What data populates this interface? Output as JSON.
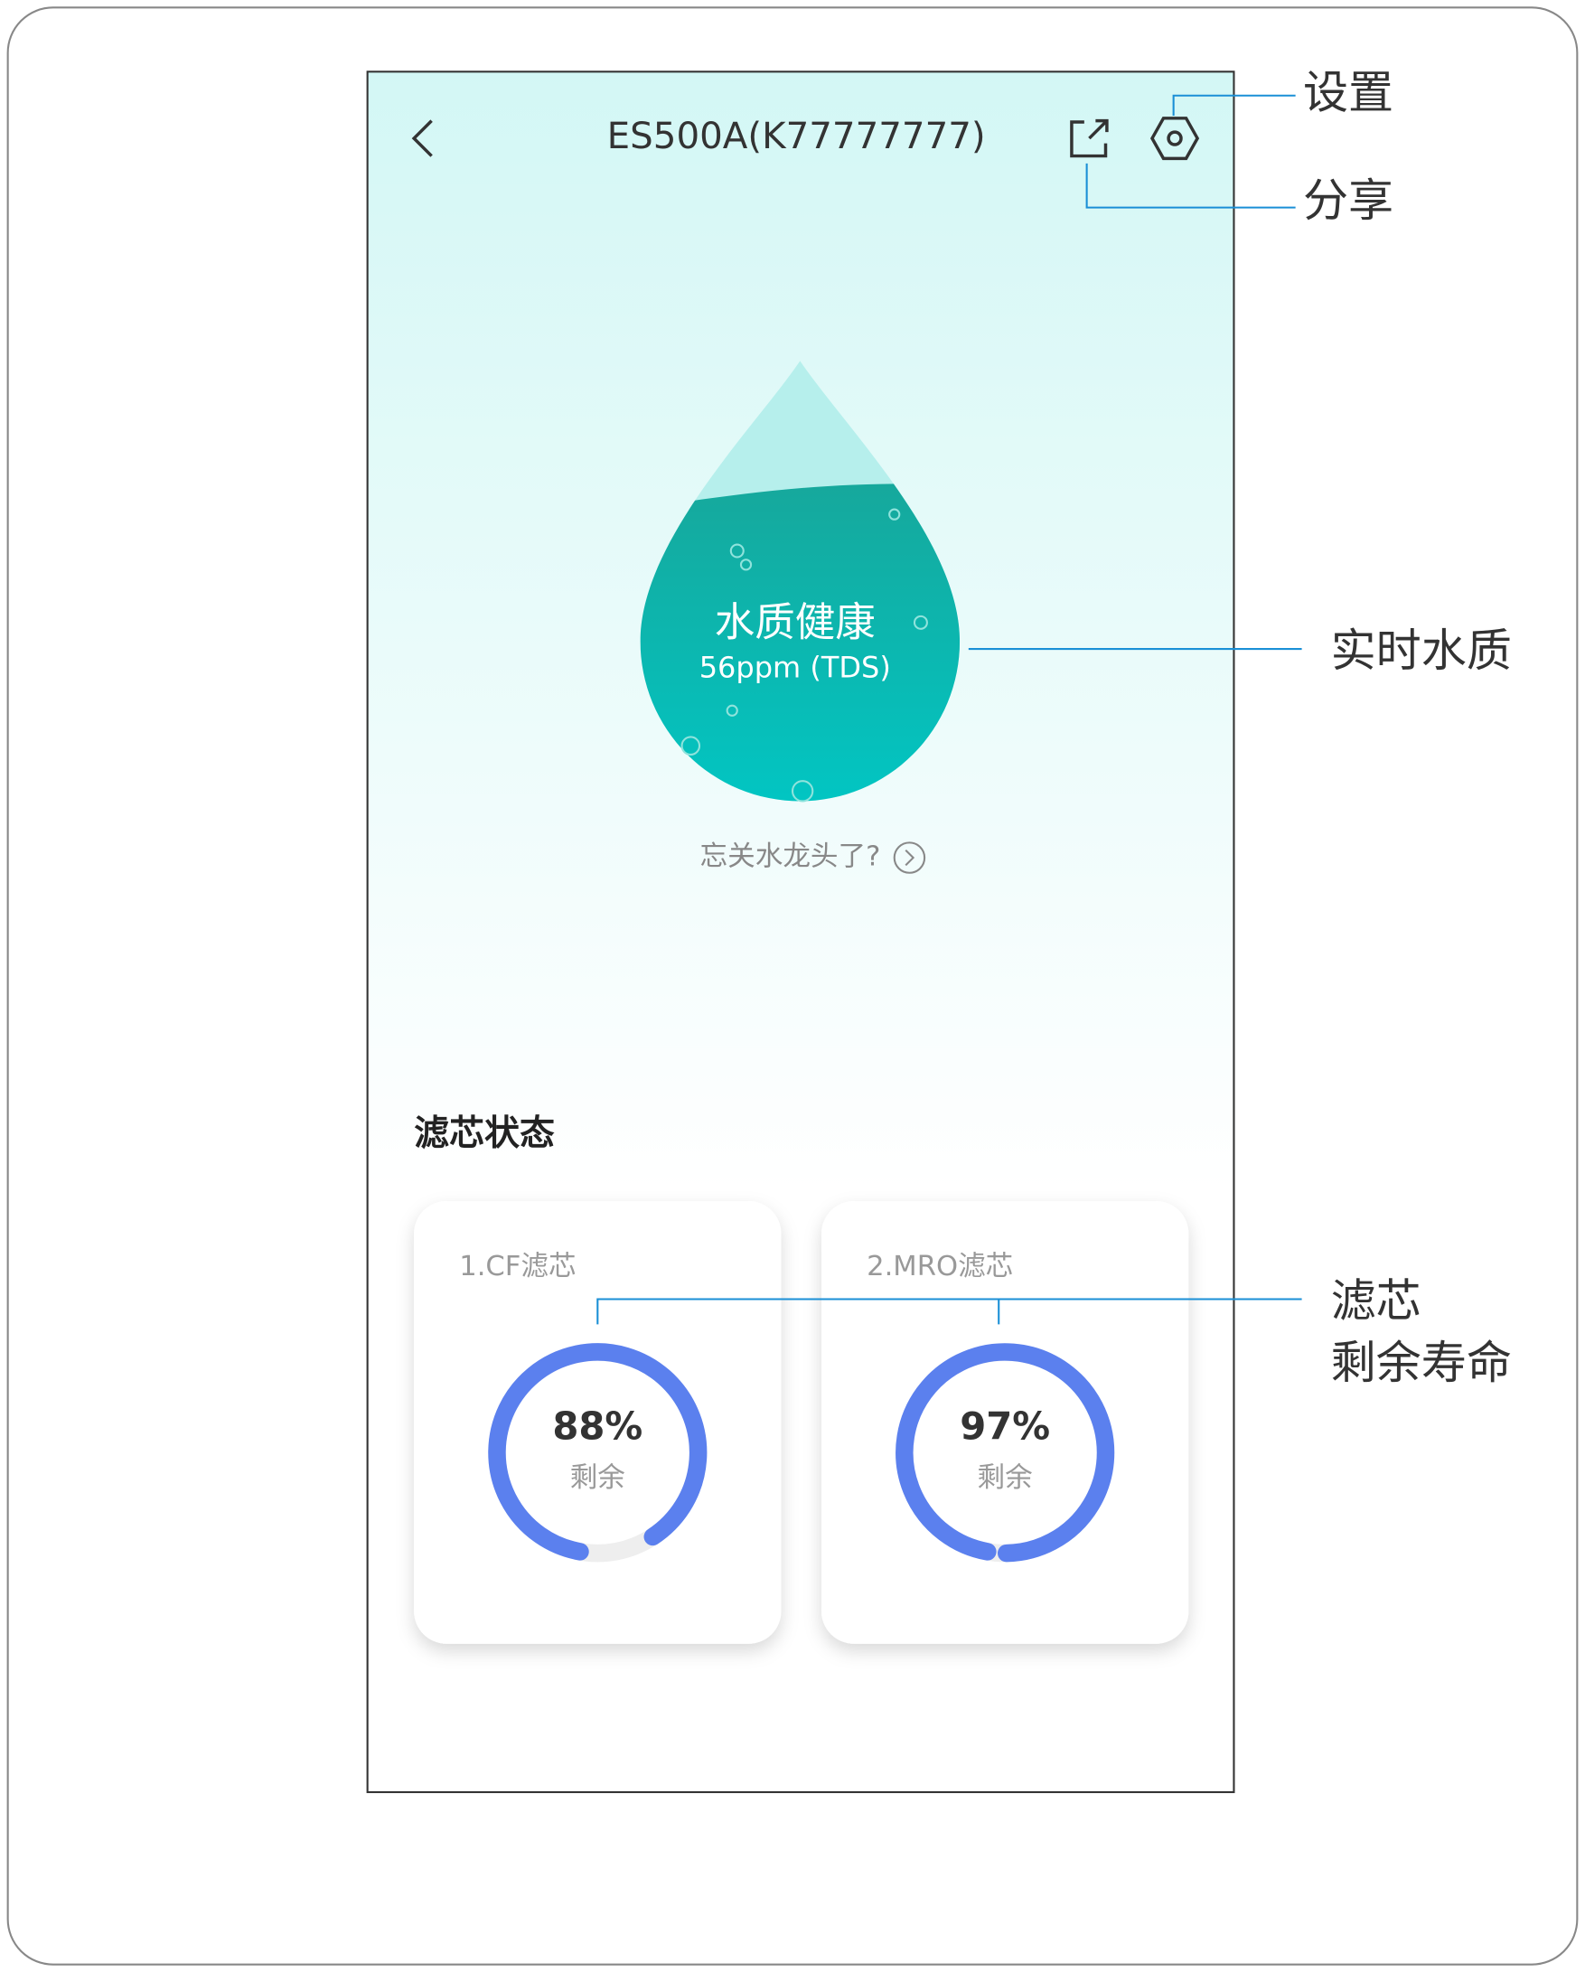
{
  "header": {
    "title": "ES500A(K77777777)"
  },
  "water_quality": {
    "status": "水质健康",
    "reading": "56ppm (TDS)",
    "prompt": "忘关水龙头了?"
  },
  "filter_section": {
    "title": "滤芯状态",
    "filters": [
      {
        "name": "1.CF滤芯",
        "remaining": 88,
        "remaining_label": "88%",
        "caption": "剩余"
      },
      {
        "name": "2.MRO滤芯",
        "remaining": 97,
        "remaining_label": "97%",
        "caption": "剩余"
      }
    ]
  },
  "annotations": {
    "settings": "设置",
    "share": "分享",
    "water_quality": "实时水质",
    "filter_life": [
      "滤芯",
      "剩余寿命"
    ]
  }
}
